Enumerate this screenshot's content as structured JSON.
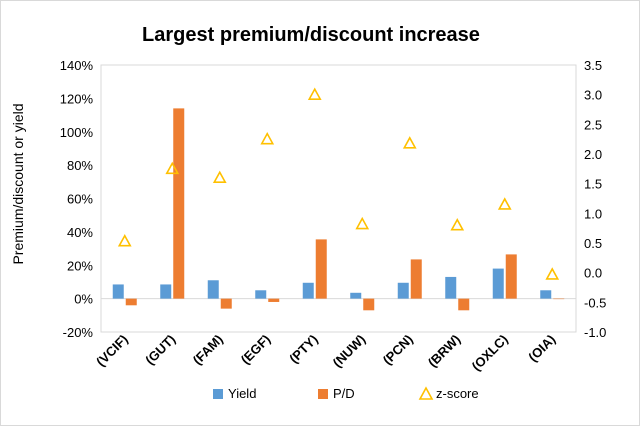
{
  "chart_data": {
    "type": "bar",
    "title": "Largest premium/discount increase",
    "ylabel": "Premium/discount or yield",
    "categories": [
      "(VCIF)",
      "(GUT)",
      "(FAM)",
      "(EGF)",
      "(PTY)",
      "(NUW)",
      "(PCN)",
      "(BRW)",
      "(OXLC)",
      "(OIA)"
    ],
    "ylim": [
      -20,
      140
    ],
    "yticks": [
      "-20%",
      "0%",
      "20%",
      "40%",
      "60%",
      "80%",
      "100%",
      "120%",
      "140%"
    ],
    "y2lim": [
      -1.0,
      3.5
    ],
    "y2ticks": [
      "-1.0",
      "-0.5",
      "0.0",
      "0.5",
      "1.0",
      "1.5",
      "2.0",
      "2.5",
      "3.0",
      "3.5"
    ],
    "grid": false,
    "legend_position": "bottom",
    "series": [
      {
        "name": "Yield",
        "axis": "left",
        "kind": "bar",
        "color": "#5b9bd5",
        "values": [
          8.5,
          8.5,
          11,
          5,
          9.5,
          3.5,
          9.5,
          13,
          18,
          5
        ]
      },
      {
        "name": "P/D",
        "axis": "left",
        "kind": "bar",
        "color": "#ed7d31",
        "values": [
          -4,
          114,
          -6,
          -2,
          35.5,
          -7,
          23.5,
          -7,
          26.5,
          0
        ]
      },
      {
        "name": "z-score",
        "axis": "right",
        "kind": "marker",
        "marker": "triangle",
        "color": "#ffc000",
        "values": [
          0.53,
          1.75,
          1.6,
          2.25,
          3.0,
          0.82,
          2.18,
          0.8,
          1.15,
          -0.03
        ]
      }
    ]
  }
}
